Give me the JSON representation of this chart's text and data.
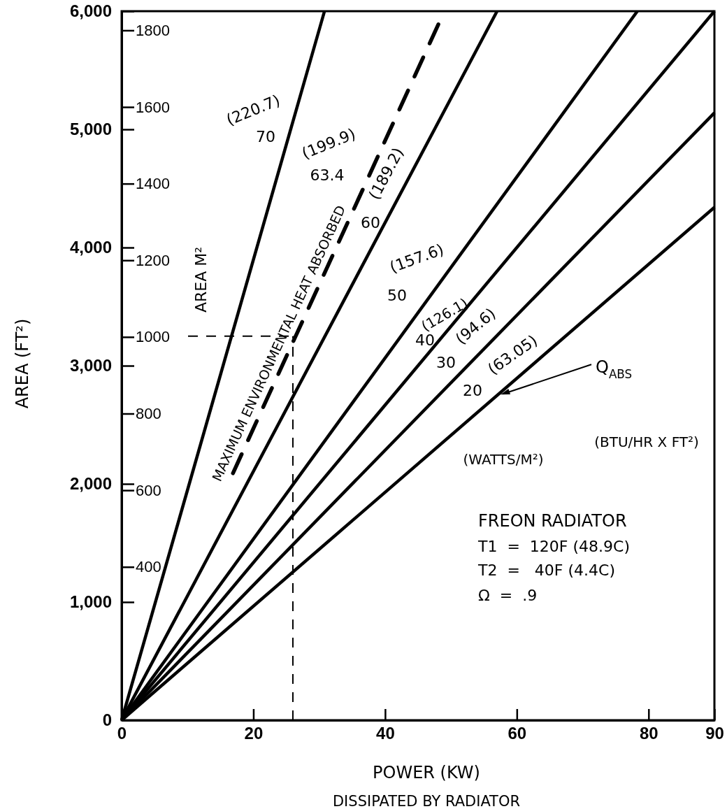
{
  "chart_data": {
    "type": "line",
    "xlabel": "POWER (KW)",
    "ylabel": "AREA (FT²)",
    "y2label": "AREA M²",
    "xlim": [
      0,
      90
    ],
    "xticks": [
      0,
      20,
      40,
      60,
      80,
      90
    ],
    "ylim": [
      0,
      6000
    ],
    "yticks": [
      0,
      {
        "value": 1000,
        "label": "1,000"
      },
      {
        "value": 2000,
        "label": "2,000"
      },
      {
        "value": 3000,
        "label": "3,000"
      },
      {
        "value": 4000,
        "label": "4,000"
      },
      {
        "value": 5000,
        "label": "5,000"
      },
      {
        "value": 6000,
        "label": "6,000"
      }
    ],
    "y2lim": [
      0,
      1850
    ],
    "y2ticks": [
      400,
      600,
      800,
      1000,
      1200,
      1400,
      1600,
      1800
    ],
    "series": [
      {
        "color": "#000000",
        "x": [
          0,
          30.8
        ],
        "values": [
          0,
          6000
        ]
      },
      {
        "name": "MAXIMUM ENVIRONMENTAL HEAT ABSORBED",
        "color": "#000000",
        "line_style": "dashed",
        "x": [
          16.9,
          49.0
        ],
        "values": [
          2090,
          6000
        ]
      },
      {
        "color": "#000000",
        "x": [
          0,
          57.0
        ],
        "values": [
          0,
          6000
        ]
      },
      {
        "color": "#000000",
        "x": [
          0,
          78.3
        ],
        "values": [
          0,
          6000
        ]
      },
      {
        "color": "#000000",
        "x": [
          0,
          90
        ],
        "values": [
          0,
          6000
        ]
      },
      {
        "color": "#000000",
        "x": [
          0,
          90
        ],
        "values": [
          0,
          5140
        ]
      },
      {
        "color": "#000000",
        "x": [
          0,
          90
        ],
        "values": [
          0,
          4340
        ]
      }
    ],
    "ref_lines": [
      {
        "axis": "x",
        "value": 26,
        "line_style": "dashed",
        "color": "#000000"
      },
      {
        "axis": "y",
        "value": 3250,
        "line_style": "dashed",
        "color": "#000000"
      }
    ],
    "annotations": [
      "(220.7)",
      "70",
      "(199.9)",
      "63.4",
      "(189.2)",
      "60",
      "(157.6)",
      "50",
      "(126.1)",
      "40",
      "(94.6)",
      "30",
      "(63.05)",
      "20",
      {
        "text": "Q$_{ABS}$",
        "x": 57.1,
        "y": 2750
      },
      "(WATTS/M²)",
      "(BTU/HR X FT²)",
      "FREON RADIATOR",
      "T1  =  120F (48.9C)",
      "T2  =   40F (4.4C)",
      "Ω  =  .9",
      "DISSIPATED BY RADIATOR"
    ]
  }
}
